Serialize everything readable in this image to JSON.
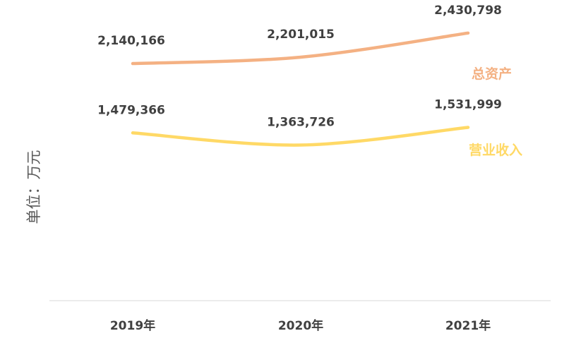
{
  "chart_data": {
    "type": "line",
    "categories": [
      "2019年",
      "2020年",
      "2021年"
    ],
    "ylabel": "单位：万元",
    "series": [
      {
        "name": "总资产",
        "values": [
          2140166,
          2201015,
          2430798
        ],
        "labels": [
          "2,140,166",
          "2,201,015",
          "2,430,798"
        ],
        "color": "#F4B183"
      },
      {
        "name": "营业收入",
        "values": [
          1479366,
          1363726,
          1531999
        ],
        "labels": [
          "1,479,366",
          "1,363,726",
          "1,531,999"
        ],
        "color": "#FFD966"
      }
    ],
    "grid": false,
    "legend": "inline-right"
  }
}
